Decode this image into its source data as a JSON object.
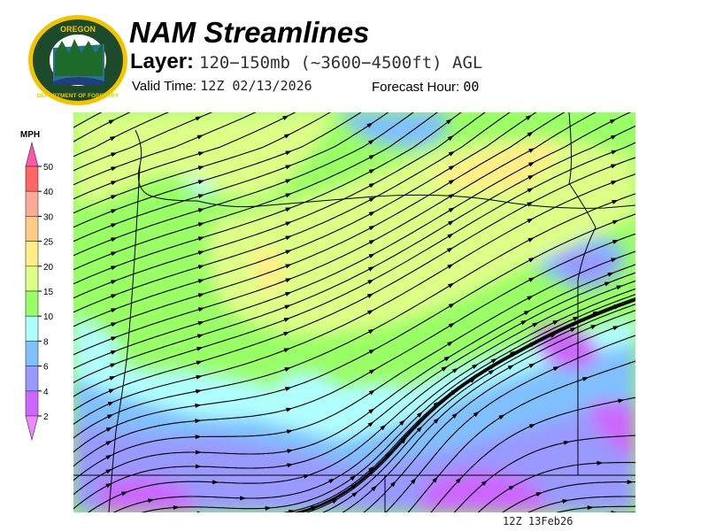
{
  "header": {
    "title": "NAM Streamlines",
    "layer_label": "Layer:",
    "layer_value": "120−150mb (~3600−4500ft) AGL",
    "valid_time_label": "Valid Time:",
    "valid_time_value": "12Z 02/13/2026",
    "forecast_hour_label": "Forecast Hour:",
    "forecast_hour_value": "00"
  },
  "logo": {
    "top_text": "OREGON",
    "bottom_text": "DEPARTMENT OF FORESTRY"
  },
  "legend": {
    "unit": "MPH",
    "labels": [
      "50",
      "40",
      "30",
      "25",
      "20",
      "15",
      "10",
      "8",
      "6",
      "4",
      "2"
    ],
    "bins": [
      {
        "range": "40-50",
        "color": "#ff6666"
      },
      {
        "range": "30-40",
        "color": "#ffaa99"
      },
      {
        "range": "25-30",
        "color": "#ffcc88"
      },
      {
        "range": "20-25",
        "color": "#ffee88"
      },
      {
        "range": "15-20",
        "color": "#ddff88"
      },
      {
        "range": "10-15",
        "color": "#99ff66"
      },
      {
        "range": "8-10",
        "color": "#b0ffff"
      },
      {
        "range": "6-8",
        "color": "#80c0ff"
      },
      {
        "range": "4-6",
        "color": "#9999ff"
      },
      {
        "range": "2-4",
        "color": "#cc66ff"
      }
    ],
    "over_color": "#ff55aa",
    "under_color": "#ee88ff"
  },
  "map": {
    "timestamp": "12Z 13Feb26"
  }
}
